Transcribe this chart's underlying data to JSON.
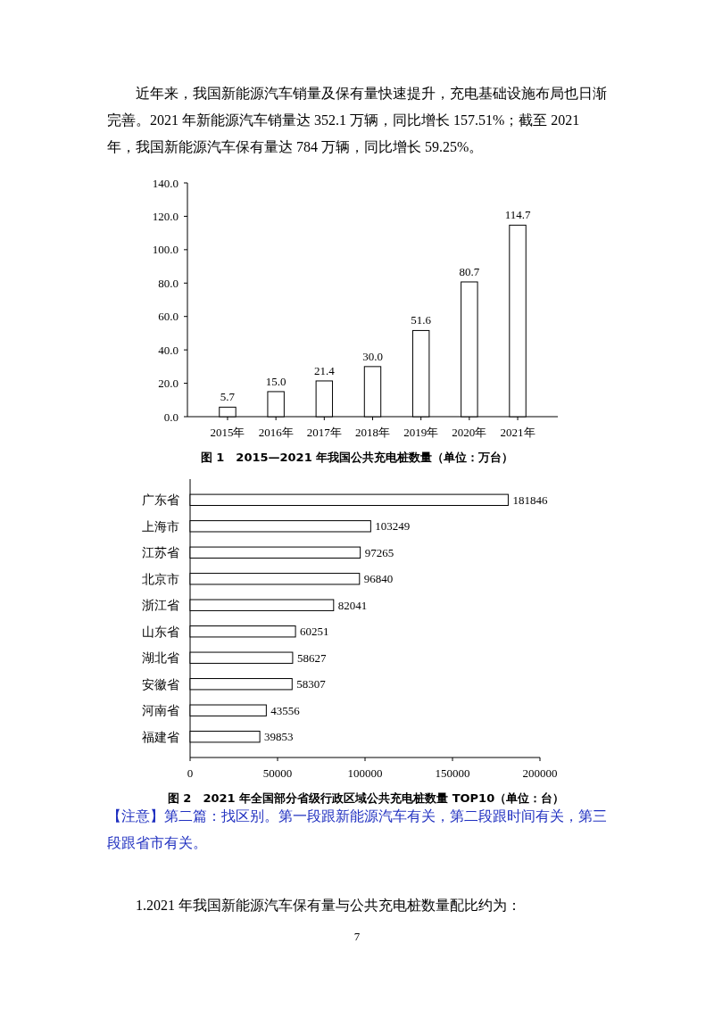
{
  "chart_data": [
    {
      "type": "bar",
      "title": "图 1　2015—2021 年我国公共充电桩数量（单位：万台）",
      "annotations": [
        "近年来，我国新能源汽车销量及保有量快速提升，充电基础设施布局也日渐完善。2021 年新能源汽车销量达 352.1 万辆，同比增长 157.51%；截至 2021 年，我国新能源汽车保有量达 784 万辆，同比增长 59.25%。"
      ],
      "categories": [
        "2015年",
        "2016年",
        "2017年",
        "2018年",
        "2019年",
        "2020年",
        "2021年"
      ],
      "values": [
        5.7,
        15.0,
        21.4,
        30.0,
        51.6,
        80.7,
        114.7
      ],
      "value_labels": [
        "5.7",
        "15.0",
        "21.4",
        "30.0",
        "51.6",
        "80.7",
        "114.7"
      ],
      "color": "#ffffff",
      "ylim": [
        0,
        140
      ],
      "yticks": [
        {
          "value": 0,
          "label": "0.0"
        },
        {
          "value": 20,
          "label": "20.0"
        },
        {
          "value": 40,
          "label": "40.0"
        },
        {
          "value": 60,
          "label": "60.0"
        },
        {
          "value": 80,
          "label": "80.0"
        },
        {
          "value": 100,
          "label": "100.0"
        },
        {
          "value": 120,
          "label": "120.0"
        },
        {
          "value": 140,
          "label": "140.0"
        }
      ]
    },
    {
      "type": "bar",
      "orientation": "horizontal",
      "title": "图 2　2021 年全国部分省级行政区域公共充电桩数量 TOP10（单位：台）",
      "annotations": [
        "【注意】第二篇：找区别。第一段跟新能源汽车有关，第二段跟时间有关，第三段跟省市有关。",
        "1.2021 年我国新能源汽车保有量与公共充电桩数量配比约为：",
        "7"
      ],
      "categories": [
        "广东省",
        "上海市",
        "江苏省",
        "北京市",
        "浙江省",
        "山东省",
        "湖北省",
        "安徽省",
        "河南省",
        "福建省"
      ],
      "values": [
        181846,
        103249,
        97265,
        96840,
        82041,
        60251,
        58627,
        58307,
        43556,
        39853
      ],
      "data_labels": true,
      "color": "#ffffff",
      "xlim": [
        0,
        200000
      ],
      "xticks": [
        0,
        50000,
        100000,
        150000,
        200000
      ]
    }
  ]
}
